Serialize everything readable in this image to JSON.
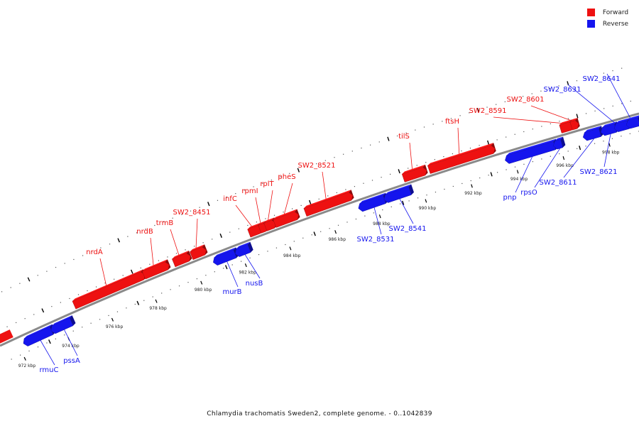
{
  "colors": {
    "forward": "#ee1111",
    "reverse": "#1515ee",
    "track": "#888888"
  },
  "legend": [
    {
      "label": "Forward",
      "color": "#ee1111"
    },
    {
      "label": "Reverse",
      "color": "#1515ee"
    }
  ],
  "caption": "Chlamydia trachomatis Sweden2, complete genome. - 0..1042839",
  "scale_labels": [
    "972 kbp",
    "974 kbp",
    "976 kbp",
    "978 kbp",
    "980 kbp",
    "982 kbp",
    "984 kbp",
    "986 kbp",
    "988 kbp",
    "990 kbp",
    "992 kbp",
    "994 kbp",
    "996 kbp",
    "998 kbp"
  ],
  "forward_genes": [
    {
      "name": "nrdA"
    },
    {
      "name": "nrdB"
    },
    {
      "name": "trmB"
    },
    {
      "name": "SW2_8451"
    },
    {
      "name": "infC"
    },
    {
      "name": "rpmI"
    },
    {
      "name": "rplT"
    },
    {
      "name": "pheS"
    },
    {
      "name": "SW2_8521"
    },
    {
      "name": "tilS"
    },
    {
      "name": "ftsH"
    },
    {
      "name": "SW2_8591"
    },
    {
      "name": "SW2_8601"
    }
  ],
  "reverse_genes": [
    {
      "name": "rmuC"
    },
    {
      "name": "pssA"
    },
    {
      "name": "murB"
    },
    {
      "name": "nusB"
    },
    {
      "name": "SW2_8531"
    },
    {
      "name": "SW2_8541"
    },
    {
      "name": "pnp"
    },
    {
      "name": "rpsO"
    },
    {
      "name": "SW2_8611"
    },
    {
      "name": "SW2_8621"
    },
    {
      "name": "SW2_8631"
    },
    {
      "name": "SW2_8641"
    }
  ]
}
